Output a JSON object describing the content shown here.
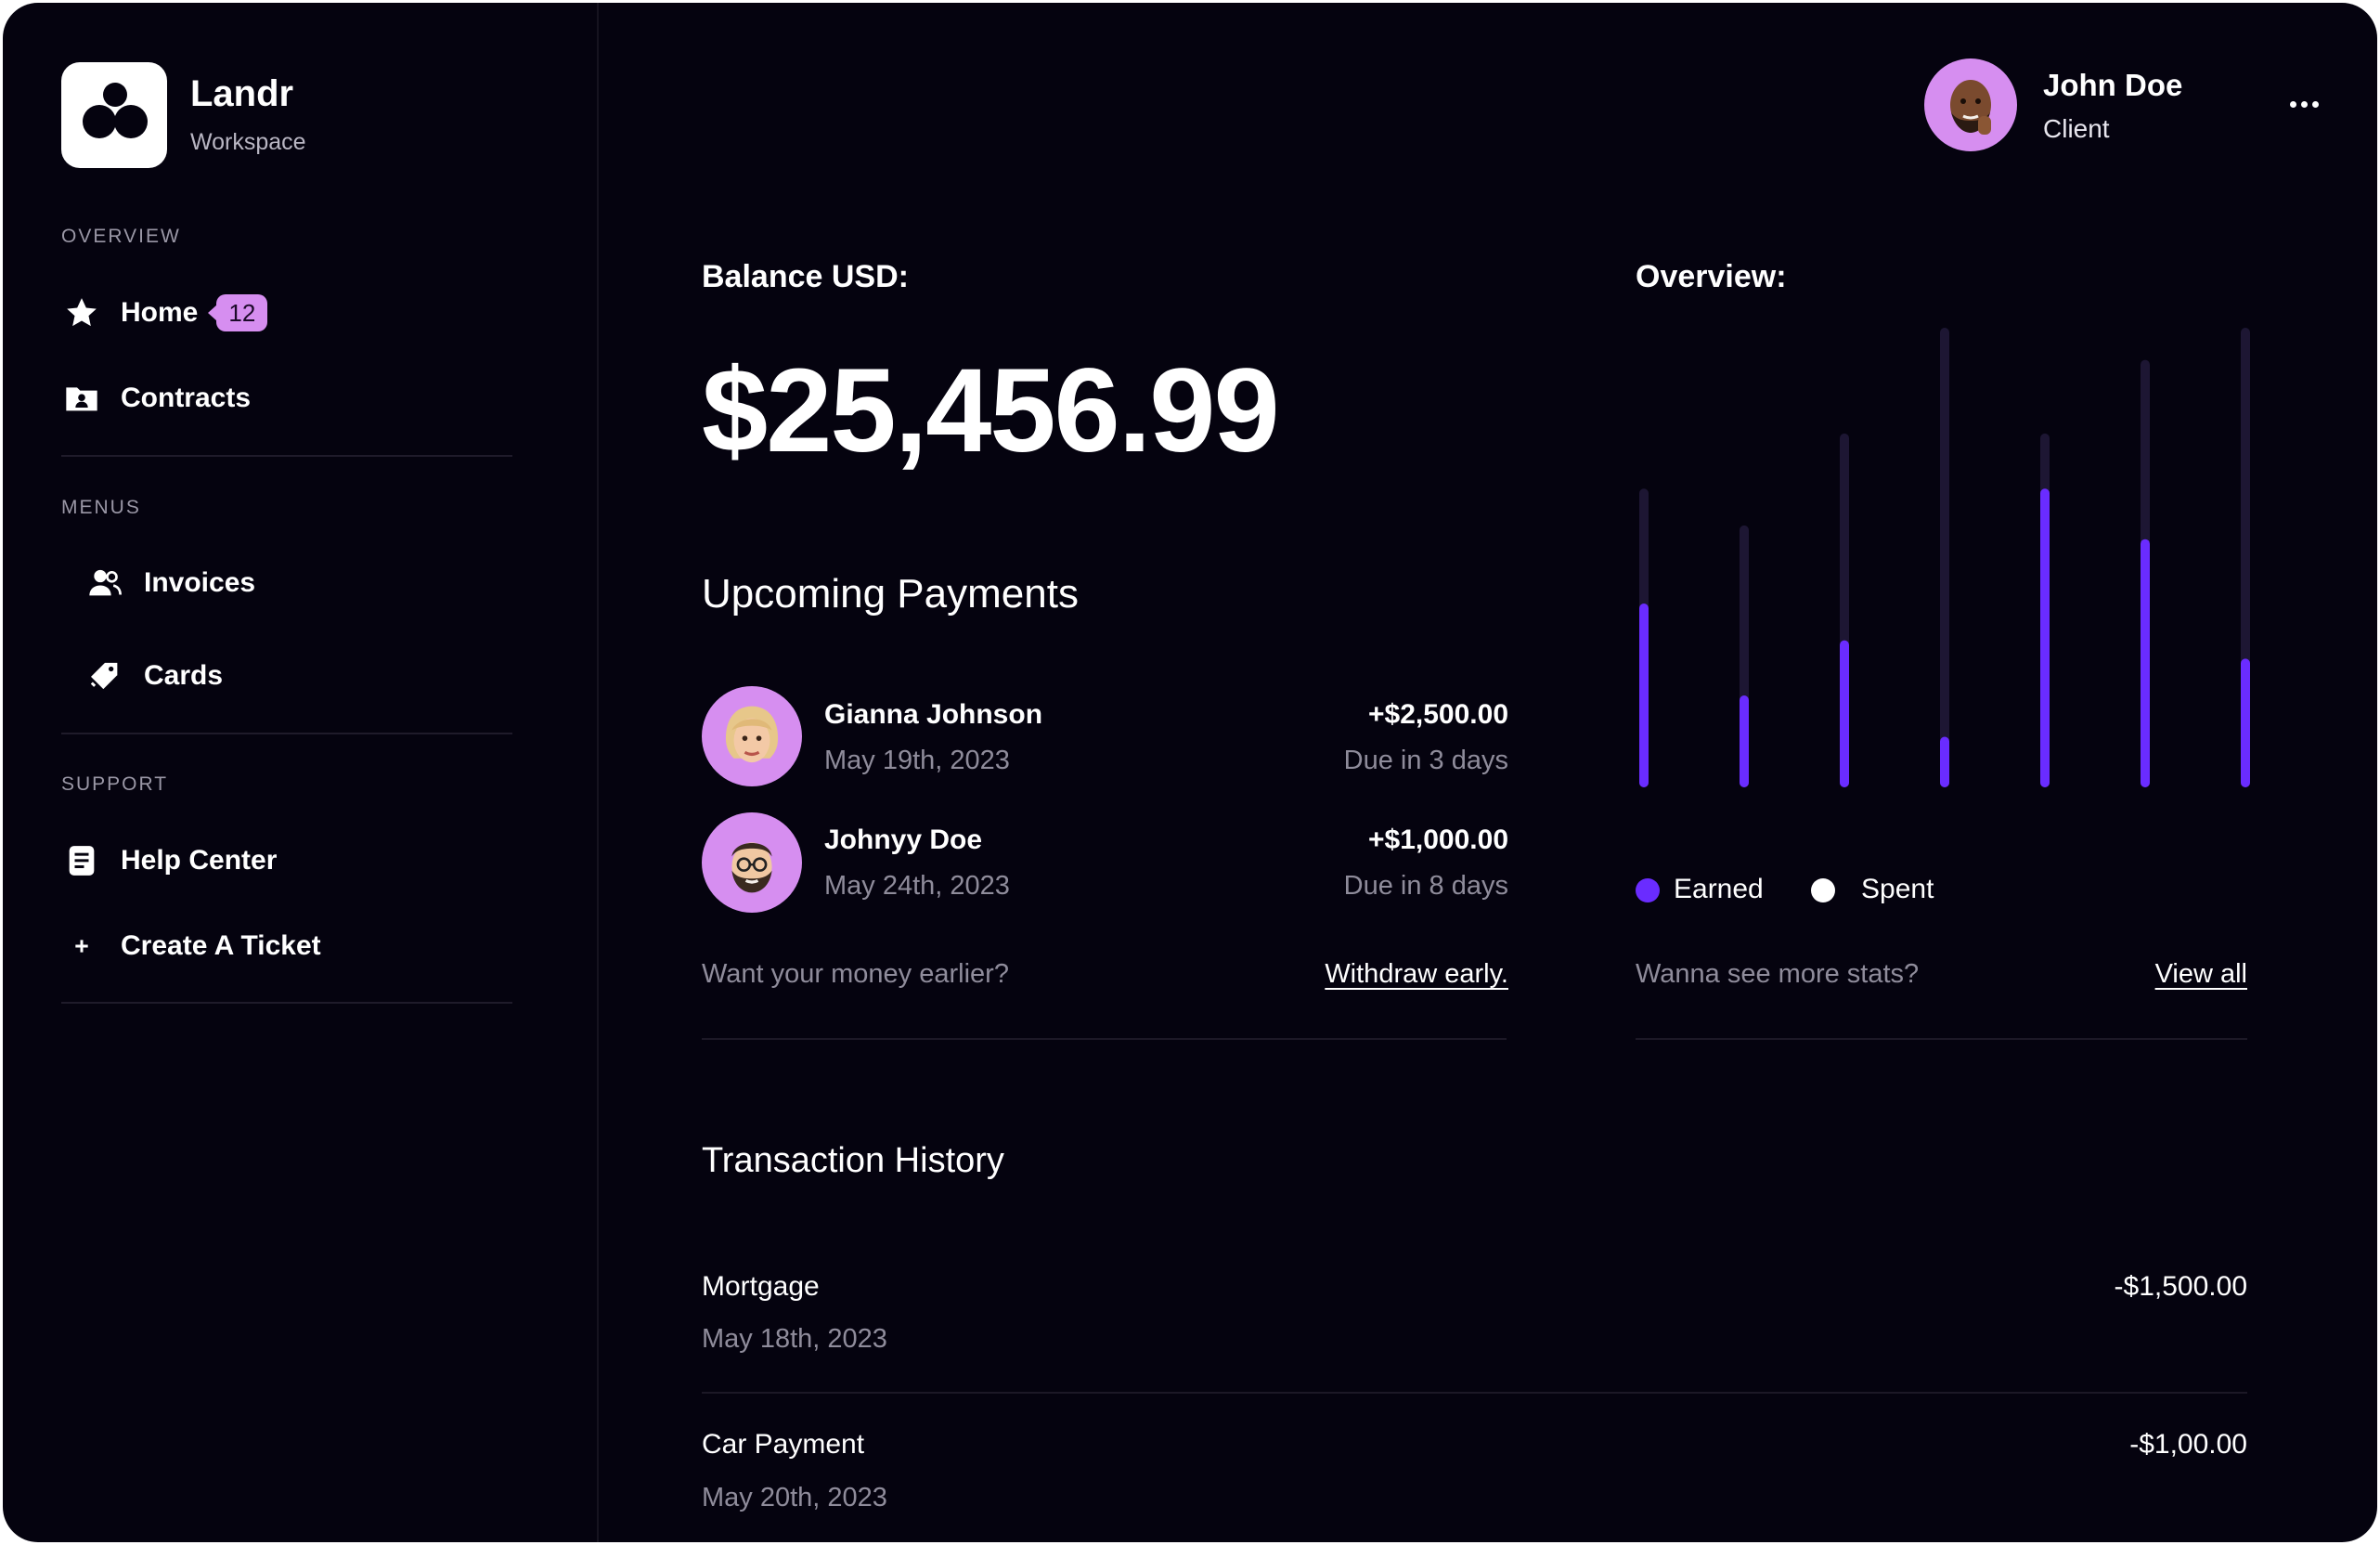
{
  "brand": {
    "name": "Landr",
    "subtitle": "Workspace"
  },
  "sidebar": {
    "sections": [
      {
        "label": "OVERVIEW"
      },
      {
        "label": "MENUS"
      },
      {
        "label": "SUPPORT"
      }
    ],
    "items": [
      {
        "label": "Home",
        "icon": "star-icon",
        "badge": "12"
      },
      {
        "label": "Contracts",
        "icon": "contracts-icon"
      },
      {
        "label": "Invoices",
        "icon": "users-icon"
      },
      {
        "label": "Cards",
        "icon": "tag-icon"
      },
      {
        "label": "Help Center",
        "icon": "document-icon"
      },
      {
        "label": "Create A Ticket",
        "icon": "plus-icon"
      }
    ]
  },
  "header": {
    "user_name": "John Doe",
    "user_role": "Client"
  },
  "balance": {
    "label": "Balance USD:",
    "amount": "$25,456.99"
  },
  "upcoming": {
    "title": "Upcoming Payments",
    "payments": [
      {
        "name": "Gianna Johnson",
        "date": "May 19th, 2023",
        "amount": "+$2,500.00",
        "due": "Due in 3 days"
      },
      {
        "name": "Johnyy Doe",
        "date": "May 24th, 2023",
        "amount": "+$1,000.00",
        "due": "Due in 8 days"
      }
    ],
    "prompt": "Want your money earlier?",
    "link": "Withdraw early."
  },
  "overview": {
    "title": "Overview:",
    "legend": {
      "earned": "Earned",
      "spent": "Spent"
    },
    "prompt": "Wanna see more stats?",
    "link": "View all"
  },
  "transactions": {
    "title": "Transaction History",
    "items": [
      {
        "name": "Mortgage",
        "date": "May 18th, 2023",
        "amount": "-$1,500.00"
      },
      {
        "name": "Car Payment",
        "date": "May 20th, 2023",
        "amount": "-$1,00.00"
      }
    ]
  },
  "chart_data": {
    "type": "bar",
    "ylim": [
      0,
      100
    ],
    "series": [
      {
        "name": "Earned",
        "color": "#6a2cff",
        "values": [
          40,
          20,
          32,
          11,
          65,
          54,
          28
        ]
      },
      {
        "name": "Spent",
        "color": "#1d1633",
        "values": [
          65,
          57,
          77,
          100,
          77,
          93,
          100
        ]
      }
    ]
  },
  "colors": {
    "background": "#05030f",
    "accent": "#6a2cff",
    "badge": "#d68ef0",
    "avatar_bg": "#d68ef0"
  }
}
